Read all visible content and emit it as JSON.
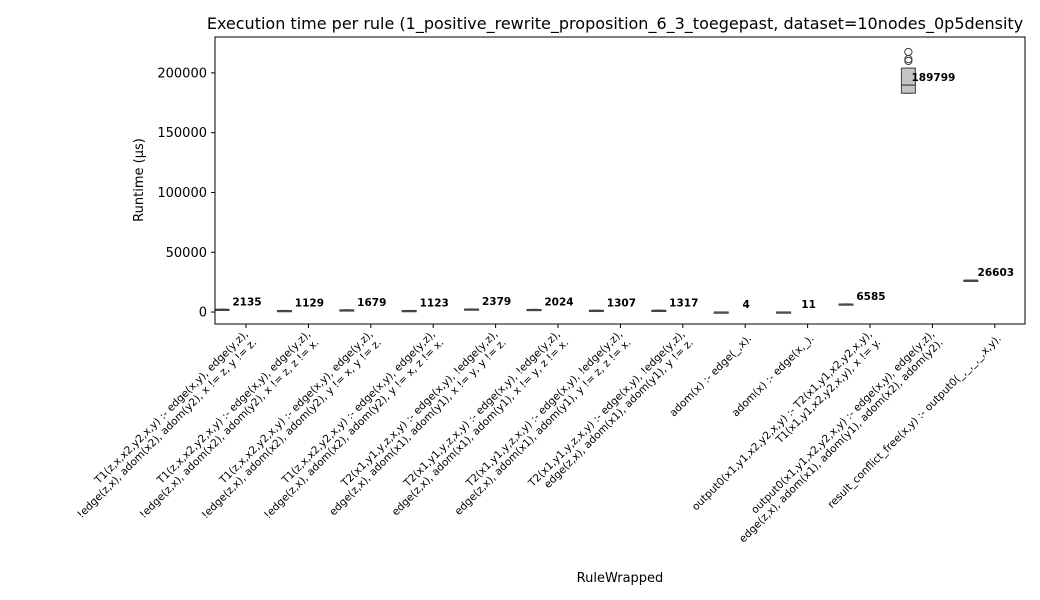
{
  "chart_data": {
    "type": "box",
    "title": "Execution time per rule (1_positive_rewrite_proposition_6_3_toegepast, dataset=10nodes_0p5density",
    "xlabel": "RuleWrapped",
    "ylabel": "Runtime (µs)",
    "ylim": [
      -10000,
      230000
    ],
    "yticks": [
      0,
      50000,
      100000,
      150000,
      200000
    ],
    "ytick_labels": [
      "0",
      "50000",
      "100000",
      "150000",
      "200000"
    ],
    "grid": false,
    "categories": [
      [
        "T1(z,x,x2,y2,x,y) :-     edge(x,y),     edge(y,z),",
        "!edge(z,x),   adom(x2),   adom(y2),   x != z,   y != z."
      ],
      [
        "T1(z,x,x2,y2,x,y) :-     edge(x,y),     edge(y,z),",
        "!edge(z,x),   adom(x2),   adom(y2),   x != z,   z != x."
      ],
      [
        "T1(z,x,x2,y2,x,y) :-     edge(x,y),     edge(y,z),",
        "!edge(z,x),   adom(x2),   adom(y2),   y != x,   y != z."
      ],
      [
        "T1(z,x,x2,y2,x,y) :-     edge(x,y),     edge(y,z),",
        "!edge(z,x),   adom(x2),   adom(y2),   y != x,   z != x."
      ],
      [
        "T2(x1,y1,y,z,x,y) :-     edge(x,y),     !edge(y,z),",
        "edge(z,x),   adom(x1),   adom(y1),   x != y,   y != z."
      ],
      [
        "T2(x1,y1,y,z,x,y) :-     edge(x,y),     !edge(y,z),",
        "edge(z,x),   adom(x1),   adom(y1),   x != y,   z != x."
      ],
      [
        "T2(x1,y1,y,z,x,y) :-     edge(x,y),     !edge(y,z),",
        "edge(z,x),   adom(x1),   adom(y1),   y != z,   z != x."
      ],
      [
        "T2(x1,y1,y,z,x,y) :-     edge(x,y),     !edge(y,z),",
        "edge(z,x),   adom(x1),   adom(y1),   y != z."
      ],
      [
        "adom(x) :-     edge(_,x)."
      ],
      [
        "adom(x) :-     edge(x,_)."
      ],
      [
        "output0(x1,y1,x2,y2,x,y) :-     T2(x1,y1,x2,y2,x,y),",
        "T1(x1,y1,x2,y2,x,y),     x != y."
      ],
      [
        "output0(x1,y1,x2,y2,x,y) :-     edge(x,y),     edge(y,z),",
        "edge(z,x),   adom(x1),   adom(y1),   adom(x2),   adom(y2)."
      ],
      [
        "result_conflict_free(x,y) :-     output0(_,_,_,_,x,y)."
      ]
    ],
    "boxes": [
      {
        "q1": 1950,
        "median": 2135,
        "q3": 2300,
        "whisker_low": 1850,
        "whisker_high": 2400,
        "outliers": []
      },
      {
        "q1": 1000,
        "median": 1129,
        "q3": 1250,
        "whisker_low": 900,
        "whisker_high": 1350,
        "outliers": []
      },
      {
        "q1": 1550,
        "median": 1679,
        "q3": 1800,
        "whisker_low": 1450,
        "whisker_high": 1900,
        "outliers": []
      },
      {
        "q1": 1000,
        "median": 1123,
        "q3": 1250,
        "whisker_low": 900,
        "whisker_high": 1350,
        "outliers": []
      },
      {
        "q1": 2250,
        "median": 2379,
        "q3": 2500,
        "whisker_low": 2150,
        "whisker_high": 2600,
        "outliers": []
      },
      {
        "q1": 1900,
        "median": 2024,
        "q3": 2150,
        "whisker_low": 1800,
        "whisker_high": 2250,
        "outliers": []
      },
      {
        "q1": 1180,
        "median": 1307,
        "q3": 1430,
        "whisker_low": 1080,
        "whisker_high": 1530,
        "outliers": []
      },
      {
        "q1": 1190,
        "median": 1317,
        "q3": 1440,
        "whisker_low": 1090,
        "whisker_high": 1540,
        "outliers": []
      },
      {
        "q1": 3,
        "median": 4,
        "q3": 6,
        "whisker_low": 2,
        "whisker_high": 8,
        "outliers": []
      },
      {
        "q1": 9,
        "median": 11,
        "q3": 13,
        "whisker_low": 7,
        "whisker_high": 15,
        "outliers": []
      },
      {
        "q1": 6450,
        "median": 6585,
        "q3": 6720,
        "whisker_low": 6350,
        "whisker_high": 6820,
        "outliers": []
      },
      {
        "q1": 183000,
        "median": 189799,
        "q3": 204000,
        "whisker_low": 183000,
        "whisker_high": 204000,
        "outliers": [
          210000,
          211500,
          217500
        ]
      },
      {
        "q1": 26603,
        "median": 26603,
        "q3": 26603,
        "whisker_low": 26603,
        "whisker_high": 26603,
        "outliers": []
      }
    ],
    "median_labels": [
      "2135",
      "1129",
      "1679",
      "1123",
      "2379",
      "2024",
      "1307",
      "1317",
      "4",
      "11",
      "6585",
      "189799",
      "26603"
    ],
    "box_color": "#c4c4c4"
  }
}
